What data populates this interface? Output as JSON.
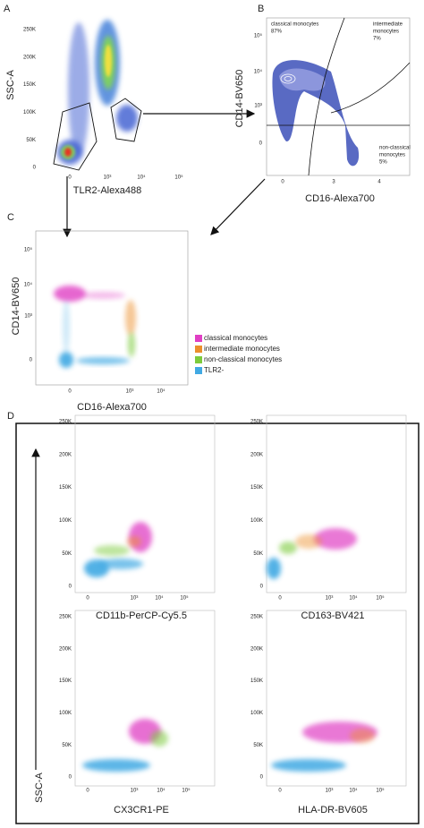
{
  "panels": [
    {
      "letter": "A",
      "x_label": "TLR2-Alexa488",
      "y_label": "SSC-A",
      "y_ticks": [
        "250K",
        "200K",
        "150K",
        "100K",
        "50K",
        "0"
      ],
      "x_ticks": [
        "0",
        "10³",
        "10⁴",
        "10⁵"
      ]
    },
    {
      "letter": "B",
      "x_label": "CD16-Alexa700",
      "y_label": "CD14-BV650",
      "y_ticks": [
        "10⁵",
        "10⁴",
        "10³",
        "0"
      ],
      "x_ticks": [
        "0",
        "3",
        "4"
      ],
      "annotations": [
        "classical monocytes",
        "87%",
        "intermediate",
        "monocytes",
        "7%",
        "non-classical",
        "monocytes",
        "5%"
      ]
    },
    {
      "letter": "C",
      "x_label": "CD16-Alexa700",
      "y_label": "CD14-BV650",
      "y_ticks": [
        "10⁵",
        "10⁴",
        "10³",
        "0"
      ],
      "x_ticks": [
        "0",
        "10³",
        "10⁴"
      ],
      "legend": [
        {
          "name": "classical monocytes",
          "color": "#e03fc4"
        },
        {
          "name": "intermediate monocytes",
          "color": "#ec8f2c"
        },
        {
          "name": "non-classical monocytes",
          "color": "#7dcb3c"
        },
        {
          "name": "TLR2-",
          "color": "#41a9e3"
        }
      ]
    },
    {
      "letter": "D",
      "y_label": "SSC-A",
      "plots": [
        {
          "x_label": "CD11b-PerCP-Cy5.5",
          "y_ticks": [
            "250K",
            "200K",
            "150K",
            "100K",
            "50K",
            "0"
          ],
          "x_ticks": [
            "0",
            "10³",
            "10⁴",
            "10⁵"
          ]
        },
        {
          "x_label": "CD163-BV421",
          "y_ticks": [
            "250K",
            "200K",
            "150K",
            "100K",
            "50K",
            "0"
          ],
          "x_ticks": [
            "0",
            "10³",
            "10⁴",
            "10⁵"
          ]
        },
        {
          "x_label": "CX3CR1-PE",
          "y_ticks": [
            "250K",
            "200K",
            "150K",
            "100K",
            "50K",
            "0"
          ],
          "x_ticks": [
            "0",
            "10³",
            "10⁴",
            "10⁵"
          ]
        },
        {
          "x_label": "HLA-DR-BV605",
          "y_ticks": [
            "250K",
            "200K",
            "150K",
            "100K",
            "50K",
            "0"
          ],
          "x_ticks": [
            "0",
            "10³",
            "10⁴",
            "10⁵"
          ]
        }
      ]
    }
  ]
}
